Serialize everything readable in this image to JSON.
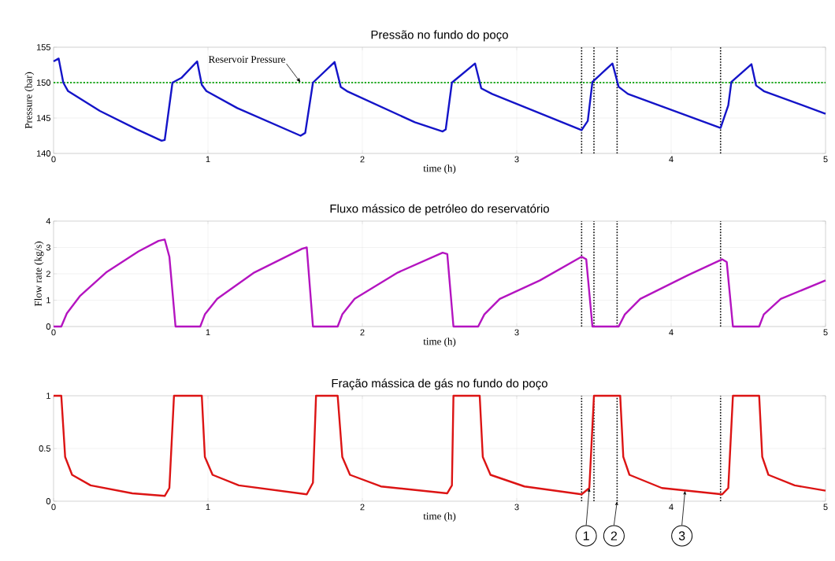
{
  "chart_data": [
    {
      "type": "line",
      "title": "Pressão no fundo do poço",
      "xlabel": "time (h)",
      "ylabel": "Pressure (bar)",
      "xlim": [
        0,
        5
      ],
      "ylim": [
        140,
        155
      ],
      "xticks": [
        0,
        1,
        2,
        3,
        4,
        5
      ],
      "yticks": [
        140,
        145,
        150,
        155
      ],
      "grid": true,
      "series": [
        {
          "color": "#1414c8",
          "x": [
            0,
            0.033,
            0.063,
            0.094,
            0.3,
            0.54,
            0.7,
            0.72,
            0.77,
            0.83,
            0.93,
            0.96,
            0.99,
            1.19,
            1.6,
            1.63,
            1.68,
            1.82,
            1.86,
            1.9,
            2.34,
            2.52,
            2.54,
            2.58,
            2.73,
            2.77,
            2.84,
            3.42,
            3.46,
            3.49,
            3.62,
            3.66,
            3.72,
            4.32,
            4.37,
            4.39,
            4.52,
            4.55,
            4.6,
            5
          ],
          "values": [
            153.0,
            153.4,
            150.0,
            148.8,
            146.0,
            143.4,
            141.8,
            141.9,
            150.0,
            150.7,
            153.0,
            149.7,
            148.8,
            146.4,
            142.5,
            142.9,
            150.0,
            152.9,
            149.4,
            148.8,
            144.4,
            143.1,
            143.4,
            150.0,
            152.7,
            149.2,
            148.4,
            143.3,
            144.6,
            150.1,
            152.7,
            149.4,
            148.4,
            143.6,
            146.8,
            150.1,
            152.6,
            149.6,
            148.8,
            145.6
          ]
        }
      ],
      "ref_lines": [
        {
          "axis": "y",
          "value": 150,
          "color": "#22aa22",
          "line_style": "dotted"
        },
        {
          "axis": "x",
          "value": 3.42,
          "color": "#000000",
          "line_style": "dotted"
        },
        {
          "axis": "x",
          "value": 3.5,
          "color": "#000000",
          "line_style": "dotted"
        },
        {
          "axis": "x",
          "value": 3.65,
          "color": "#000000",
          "line_style": "dotted"
        },
        {
          "axis": "x",
          "value": 4.32,
          "color": "#000000",
          "line_style": "dotted"
        }
      ],
      "annotations": [
        {
          "text": "Reservoir Pressure",
          "x": 1.6,
          "y": 150
        }
      ]
    },
    {
      "type": "line",
      "title": "Fluxo mássico de petróleo do reservatório",
      "xlabel": "time (h)",
      "ylabel": "Flow rate (kg/s)",
      "xlim": [
        0,
        5
      ],
      "ylim": [
        0,
        4
      ],
      "xticks": [
        0,
        1,
        2,
        3,
        4,
        5
      ],
      "yticks": [
        0,
        1,
        2,
        3,
        4
      ],
      "grid": true,
      "series": [
        {
          "color": "#b414c0",
          "x": [
            0,
            0.05,
            0.086,
            0.17,
            0.34,
            0.55,
            0.68,
            0.72,
            0.75,
            0.79,
            0.95,
            0.98,
            1.06,
            1.3,
            1.61,
            1.64,
            1.68,
            1.84,
            1.87,
            1.95,
            2.23,
            2.52,
            2.55,
            2.59,
            2.75,
            2.79,
            2.89,
            3.15,
            3.42,
            3.45,
            3.49,
            3.66,
            3.7,
            3.8,
            4.11,
            4.33,
            4.36,
            4.4,
            4.57,
            4.6,
            4.71,
            5
          ],
          "values": [
            0,
            0,
            0.5,
            1.15,
            2.05,
            2.85,
            3.25,
            3.3,
            2.65,
            0,
            0,
            0.46,
            1.05,
            2.05,
            2.95,
            3.0,
            0,
            0,
            0.46,
            1.05,
            2.05,
            2.8,
            2.75,
            0,
            0,
            0.46,
            1.05,
            1.75,
            2.65,
            2.55,
            0,
            0,
            0.46,
            1.05,
            1.95,
            2.55,
            2.45,
            0,
            0,
            0.46,
            1.05,
            1.75
          ]
        }
      ],
      "ref_lines": [
        {
          "axis": "x",
          "value": 3.42,
          "color": "#000000",
          "line_style": "dotted"
        },
        {
          "axis": "x",
          "value": 3.5,
          "color": "#000000",
          "line_style": "dotted"
        },
        {
          "axis": "x",
          "value": 3.65,
          "color": "#000000",
          "line_style": "dotted"
        },
        {
          "axis": "x",
          "value": 4.32,
          "color": "#000000",
          "line_style": "dotted"
        }
      ]
    },
    {
      "type": "line",
      "title": "Fração mássica de gás no fundo do poço",
      "xlabel": "time (h)",
      "xlim": [
        0,
        5
      ],
      "ylim": [
        0,
        1
      ],
      "xticks": [
        0,
        1,
        2,
        3,
        4,
        5
      ],
      "yticks": [
        0,
        0.5,
        1
      ],
      "grid": true,
      "series": [
        {
          "color": "#dc1414",
          "x": [
            0,
            0.05,
            0.075,
            0.12,
            0.24,
            0.51,
            0.72,
            0.75,
            0.78,
            0.96,
            0.98,
            1.03,
            1.2,
            1.64,
            1.68,
            1.7,
            1.84,
            1.87,
            1.92,
            2.12,
            2.55,
            2.58,
            2.59,
            2.76,
            2.78,
            2.83,
            3.05,
            3.42,
            3.47,
            3.5,
            3.67,
            3.69,
            3.73,
            3.94,
            4.33,
            4.37,
            4.4,
            4.57,
            4.59,
            4.63,
            4.8,
            5
          ],
          "values": [
            1,
            1,
            0.42,
            0.25,
            0.15,
            0.075,
            0.05,
            0.125,
            1,
            1,
            0.42,
            0.25,
            0.15,
            0.065,
            0.175,
            1,
            1,
            0.42,
            0.25,
            0.14,
            0.075,
            0.15,
            1,
            1,
            0.42,
            0.25,
            0.14,
            0.065,
            0.125,
            1,
            1,
            0.42,
            0.25,
            0.125,
            0.065,
            0.125,
            1,
            1,
            0.42,
            0.25,
            0.15,
            0.1
          ]
        }
      ],
      "ref_lines": [
        {
          "axis": "x",
          "value": 3.42,
          "color": "#000000",
          "line_style": "dotted"
        },
        {
          "axis": "x",
          "value": 3.5,
          "color": "#000000",
          "line_style": "dotted"
        },
        {
          "axis": "x",
          "value": 3.65,
          "color": "#000000",
          "line_style": "dotted"
        },
        {
          "axis": "x",
          "value": 4.32,
          "color": "#000000",
          "line_style": "dotted"
        }
      ],
      "annotations": [
        {
          "text": "1",
          "x": 3.47,
          "y": 0.125
        },
        {
          "text": "2",
          "x": 3.65,
          "y": 0
        },
        {
          "text": "3",
          "x": 4.09,
          "y": 0.1
        }
      ]
    }
  ]
}
